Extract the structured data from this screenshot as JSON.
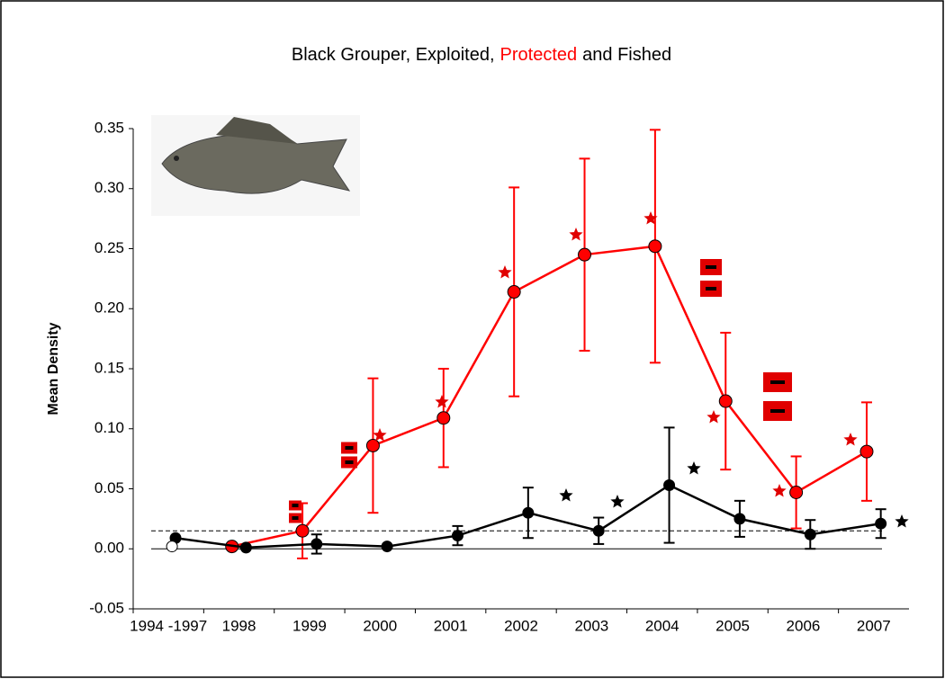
{
  "chart_data": {
    "type": "line",
    "title": [
      "Black Grouper, Exploited,",
      "Protected",
      "and Fished"
    ],
    "title_colors": [
      "#000000",
      "#ff0000",
      "#000000"
    ],
    "ylabel": "Mean Density",
    "categories": [
      "1994 -1997",
      "1998",
      "1999",
      "2000",
      "2001",
      "2002",
      "2003",
      "2004",
      "2005",
      "2006",
      "2007"
    ],
    "series": [
      {
        "color": "#ff0000",
        "values": [
          null,
          0.002,
          0.015,
          0.086,
          0.109,
          0.214,
          0.245,
          0.252,
          0.123,
          0.047,
          0.081
        ],
        "errors": [
          null,
          null,
          0.023,
          0.056,
          0.041,
          0.087,
          0.08,
          0.097,
          0.057,
          0.03,
          0.041
        ]
      },
      {
        "color": "#000000",
        "values": [
          0.009,
          0.001,
          0.004,
          0.002,
          0.011,
          0.03,
          0.015,
          0.053,
          0.025,
          0.012,
          0.021
        ],
        "errors": [
          null,
          null,
          0.008,
          null,
          0.008,
          0.021,
          0.011,
          0.048,
          0.015,
          0.012,
          0.012
        ]
      },
      {
        "color": "#ffffff",
        "values": [
          0.002,
          null,
          null,
          null,
          null,
          null,
          null,
          null,
          null,
          null,
          null
        ]
      }
    ],
    "reference_lines": [
      0.015,
      0.0
    ],
    "ylim": [
      -0.05,
      0.35
    ],
    "yticks": [
      -0.05,
      {
        "value": 0.0,
        "label": "0.00"
      },
      0.05,
      {
        "value": 0.1,
        "label": "0.10"
      },
      0.15,
      {
        "value": 0.2,
        "label": "0.20"
      },
      0.25,
      {
        "value": 0.3,
        "label": "0.30"
      },
      0.35
    ]
  }
}
